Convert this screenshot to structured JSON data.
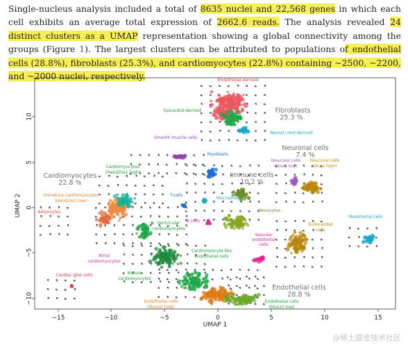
{
  "paragraph": [
    {
      "t": "Single-nucleus analysis included a total of ",
      "h": false
    },
    {
      "t": "8635 nuclei and 22,568 genes",
      "h": true
    },
    {
      "t": " in which each cell exhibits an average total expression of ",
      "h": false
    },
    {
      "t": "2662.6 reads.",
      "h": true
    },
    {
      "t": " The analysis revealed ",
      "h": false
    },
    {
      "t": "24 distinct clusters as a UMAP",
      "h": true
    },
    {
      "t": " representation showing a global connectivity among the groups (Figure ",
      "h": false
    },
    {
      "t": "1",
      "h": false,
      "ref": true
    },
    {
      "t": "). The largest clusters can be attributed to populations o",
      "h": false
    },
    {
      "t": "f endothelial cells (28.8%), fibroblasts (25.3%), and cardiomyocytes (22.8%) containing ~2500, ~2200, and ~2000 nuclei, respectively.",
      "h": true
    }
  ],
  "figure": {
    "xlabel": "UMAP 1",
    "ylabel": "UMAP 2",
    "xticks": [
      "−15",
      "−10",
      "−5",
      "0",
      "5",
      "10",
      "15"
    ],
    "yticks": [
      "10",
      "5",
      "0",
      "−5",
      "−10"
    ],
    "big_labels": [
      {
        "key": "fib1",
        "text": "Fibroblasts"
      },
      {
        "key": "fib2",
        "text": "25.3 %"
      },
      {
        "key": "neu1",
        "text": "Neuronal cells"
      },
      {
        "key": "neu2",
        "text": "7.4 %"
      },
      {
        "key": "car1",
        "text": "Cardiomyocytes"
      },
      {
        "key": "car2",
        "text": "22.8 %"
      },
      {
        "key": "imm1",
        "text": "Immune cells"
      },
      {
        "key": "imm2",
        "text": "10.2 %"
      },
      {
        "key": "end1",
        "text": "Endothelial cells"
      },
      {
        "key": "end2",
        "text": "28.8 %"
      }
    ],
    "cluster_labels": [
      {
        "key": "endoDerived",
        "text": "Endothelial-derived",
        "color": "#e63946"
      },
      {
        "key": "epiDerived",
        "text": "Epicardial-derived",
        "color": "#13a538"
      },
      {
        "key": "neuralCrest",
        "text": "Neural crest-derived",
        "color": "#1aa8c8"
      },
      {
        "key": "smooth",
        "text": "Smooth muscle cells",
        "color": "#8e44ad"
      },
      {
        "key": "myoblasts",
        "text": "Myoblasts",
        "color": "#1f6fd1"
      },
      {
        "key": "neuAno2",
        "text": "Neuronal cells",
        "color": "#9b59b6"
      },
      {
        "key": "neuAno2b",
        "text": "(Ano2 low)",
        "color": "#9b59b6"
      },
      {
        "key": "neuAno1",
        "text": "Neuronal cells",
        "color": "#c68a00"
      },
      {
        "key": "neuAno1b",
        "text": "(Ano1 high)",
        "color": "#c68a00"
      },
      {
        "key": "cmHand",
        "text": "Cardiomyocytes",
        "color": "#13a538"
      },
      {
        "key": "cmHandb",
        "text": "(Hand2os1 high)",
        "color": "#13a538"
      },
      {
        "key": "immCm",
        "text": "Immature cardiomyocytes",
        "color": "#e67e22"
      },
      {
        "key": "immCmb",
        "text": "(Hand2os1 low)",
        "color": "#e67e22"
      },
      {
        "key": "adipo",
        "text": "Adipocytes",
        "color": "#e74c3c"
      },
      {
        "key": "tcells",
        "text": "T-cells",
        "color": "#1f6fd1"
      },
      {
        "key": "macro",
        "text": "Macrophages",
        "color": "#1aa8c8"
      },
      {
        "key": "bcells",
        "text": "B-cells",
        "color": "#e0249a"
      },
      {
        "key": "mono",
        "text": "Monocytes",
        "color": "#6b8e23"
      },
      {
        "key": "vcm",
        "text": "Ventricular",
        "color": "#13a538"
      },
      {
        "key": "vcmb",
        "text": "cardiomyocytes",
        "color": "#13a538"
      },
      {
        "key": "endoc",
        "text": "Endocardial",
        "color": "#c68a00"
      },
      {
        "key": "endocb",
        "text": "cells",
        "color": "#c68a00"
      },
      {
        "key": "meso",
        "text": "Mesothelial cells",
        "color": "#1aa8c8"
      },
      {
        "key": "atrial",
        "text": "Atrial",
        "color": "#c0399f"
      },
      {
        "key": "atrialb",
        "text": "cardiomyocytes",
        "color": "#c0399f"
      },
      {
        "key": "cmEndo",
        "text": "Cardiomyocyte-like",
        "color": "#13a538"
      },
      {
        "key": "cmEndob",
        "text": "endothelial cells",
        "color": "#13a538"
      },
      {
        "key": "vasc",
        "text": "Vascular",
        "color": "#e0249a"
      },
      {
        "key": "vascb",
        "text": "endothelial",
        "color": "#e0249a"
      },
      {
        "key": "vascc",
        "text": "cells",
        "color": "#e0249a"
      },
      {
        "key": "glial",
        "text": "Cardiac glial cells",
        "color": "#e63946"
      },
      {
        "key": "mature",
        "text": "Mature",
        "color": "#13a538"
      },
      {
        "key": "matureb",
        "text": "cardiomyocytes",
        "color": "#13a538"
      },
      {
        "key": "endoMyo",
        "text": "Endothelial cells",
        "color": "#e67e22"
      },
      {
        "key": "endoMyob",
        "text": "(Myo10 high)",
        "color": "#e67e22"
      },
      {
        "key": "endoMyoL",
        "text": "Endothelial cells",
        "color": "#13a538"
      },
      {
        "key": "endoMyoLb",
        "text": "(Myo10 low)",
        "color": "#13a538"
      }
    ]
  },
  "watermark": "@稀土掘金技术社区"
}
